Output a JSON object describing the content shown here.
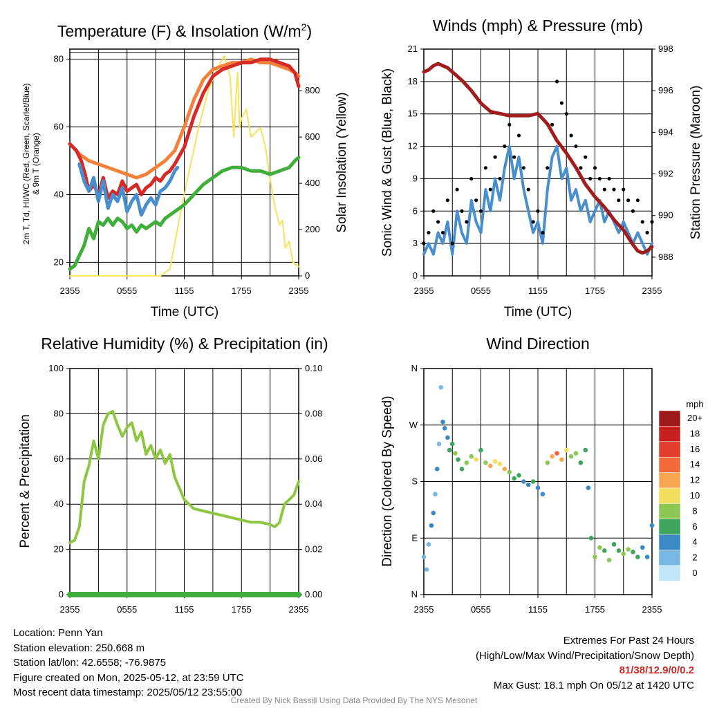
{
  "chart_data": [
    {
      "type": "line",
      "title": "Temperature (F) & Insolation (W/m²)",
      "title_main": "Temperature (F) & Insolation (W/m",
      "title_sup": "2",
      "title_end": ")",
      "xlabel": "Time (UTC)",
      "ylabel_left": [
        "2m T, Td, HI/WC (Red, Green, Scarlet/Blue)",
        "& 9m T (Orange)"
      ],
      "ylabel_right": "Solar Insolation (Yellow)",
      "x_tick_labels": [
        "2355",
        "0555",
        "1155",
        "1755",
        "2355"
      ],
      "xlim": [
        0,
        24
      ],
      "ylim_left": [
        16,
        83
      ],
      "ylim_right": [
        0,
        980
      ],
      "y_ticks_left": [
        20,
        40,
        60,
        80
      ],
      "y_ticks_right": [
        0,
        200,
        400,
        600,
        800
      ],
      "grid": true,
      "colors": {
        "temp": "#d62a27",
        "dewpoint": "#3fae3a",
        "windchill": "#4a8fcd",
        "temp9m": "#f2813b",
        "insolation": "#f7e25a"
      },
      "series": [
        {
          "key": "temp9m",
          "x": [
            0,
            1,
            2,
            3,
            4,
            5,
            6,
            7,
            8,
            9,
            10,
            11,
            12,
            13,
            14,
            15,
            16,
            17,
            18,
            19,
            20,
            21,
            22,
            23,
            23.6,
            24
          ],
          "y": [
            55,
            52,
            50,
            49,
            48,
            47,
            46,
            45,
            46,
            48,
            50,
            53,
            60,
            68,
            74,
            77,
            78,
            79,
            79,
            80,
            79,
            79,
            78,
            77,
            76,
            75
          ]
        },
        {
          "key": "temp",
          "x": [
            0,
            0.7,
            1.2,
            1.6,
            2,
            2.5,
            3,
            3.5,
            4,
            4.5,
            5,
            5.5,
            6,
            6.5,
            7,
            7.5,
            8,
            8.5,
            9,
            9.5,
            10,
            10.5,
            11,
            12,
            13,
            14,
            15,
            16,
            17,
            18,
            19,
            20,
            21,
            22,
            23,
            23.6,
            24
          ],
          "y": [
            55,
            53,
            50,
            46,
            41,
            43,
            40,
            45,
            39,
            41,
            40,
            44,
            41,
            42,
            43,
            40,
            42,
            43,
            45,
            44,
            46,
            47,
            49,
            54,
            63,
            70,
            75,
            77,
            78,
            79,
            79,
            80,
            80,
            79,
            78,
            76,
            72
          ]
        },
        {
          "key": "windchill",
          "x": [
            1,
            1.5,
            2,
            2.5,
            3,
            3.5,
            4,
            4.5,
            5,
            5.5,
            6,
            6.5,
            7,
            7.5,
            8,
            8.5,
            9,
            9.5,
            10,
            10.5,
            11,
            11.3
          ],
          "y": [
            49,
            44,
            41,
            45,
            38,
            44,
            36,
            40,
            38,
            42,
            35,
            38,
            40,
            34,
            37,
            39,
            37,
            41,
            42,
            44,
            47,
            48
          ]
        },
        {
          "key": "dewpoint",
          "x": [
            0,
            0.5,
            1,
            1.5,
            2,
            2.5,
            3,
            3.5,
            4,
            4.5,
            5,
            5.5,
            6,
            6.5,
            7,
            7.5,
            8,
            8.5,
            9,
            9.5,
            10,
            10.5,
            11,
            12,
            13,
            14,
            15,
            16,
            17,
            18,
            19,
            20,
            21,
            22,
            23,
            23.6,
            24
          ],
          "y": [
            18,
            19,
            22,
            25,
            30,
            27,
            32,
            31,
            33,
            31,
            33,
            32,
            30,
            31,
            29,
            31,
            30,
            31,
            32,
            31,
            33,
            34,
            35,
            37,
            40,
            43,
            45,
            47,
            48,
            48,
            47,
            47,
            46,
            47,
            48,
            50,
            51
          ]
        },
        {
          "key": "insolation",
          "x": [
            0,
            9.5,
            10.5,
            11.5,
            12.5,
            13.5,
            14.5,
            15.5,
            16.2,
            16.8,
            17.2,
            17.4,
            17.6,
            17.8,
            18,
            18.5,
            19,
            19.5,
            20,
            20.5,
            21,
            21.5,
            22,
            22.3,
            22.6,
            23,
            23.4,
            24
          ],
          "y": [
            0,
            0,
            30,
            250,
            450,
            640,
            800,
            900,
            950,
            860,
            600,
            760,
            880,
            640,
            680,
            720,
            600,
            620,
            640,
            560,
            420,
            300,
            220,
            240,
            120,
            150,
            60,
            40
          ]
        }
      ]
    },
    {
      "type": "line",
      "title": "Winds (mph) & Pressure (mb)",
      "xlabel": "Time (UTC)",
      "ylabel_left": "Sonic Wind & Gust (Blue, Black)",
      "ylabel_right": "Station Pressure (Maroon)",
      "x_tick_labels": [
        "2355",
        "0555",
        "1155",
        "1755",
        "2355"
      ],
      "xlim": [
        0,
        24
      ],
      "ylim_left": [
        0,
        21
      ],
      "ylim_right": [
        987.1,
        998
      ],
      "y_ticks_left": [
        0,
        3,
        6,
        9,
        12,
        15,
        18,
        21
      ],
      "y_ticks_right": [
        988,
        990,
        992,
        994,
        996,
        998
      ],
      "grid": true,
      "colors": {
        "wind": "#4a8fcd",
        "gust": "#000000",
        "pressure": "#a11c1c"
      },
      "series": [
        {
          "key": "wind",
          "x": [
            0,
            0.5,
            1,
            1.5,
            2,
            2.5,
            3,
            3.5,
            4,
            4.5,
            5,
            5.5,
            6,
            6.5,
            7,
            7.5,
            8,
            8.5,
            9,
            9.5,
            10,
            10.5,
            11,
            11.5,
            12,
            12.5,
            13,
            13.5,
            14,
            14.5,
            15,
            15.5,
            16,
            16.5,
            17,
            17.5,
            18,
            18.5,
            19,
            19.5,
            20,
            20.5,
            21,
            21.5,
            22,
            22.5,
            23,
            23.5,
            24
          ],
          "y": [
            2,
            3,
            2,
            4,
            3,
            5,
            2,
            6,
            4,
            3,
            7,
            5,
            4,
            8,
            6,
            9,
            7,
            10,
            12,
            9,
            11,
            8,
            6,
            4,
            5,
            3,
            8,
            11,
            12,
            9,
            10,
            7,
            8,
            6,
            7,
            5,
            6,
            7,
            5,
            6,
            5,
            4,
            5,
            4,
            3,
            4,
            3,
            2,
            3
          ]
        },
        {
          "key": "gust",
          "x": [
            0,
            0.5,
            1,
            1.5,
            2,
            2.5,
            3,
            3.5,
            4,
            4.5,
            5,
            5.5,
            6,
            6.5,
            7,
            7.5,
            8,
            8.5,
            9,
            9.5,
            10,
            10.5,
            11,
            11.5,
            12,
            12.5,
            13,
            13.5,
            14,
            14.5,
            15,
            15.5,
            16,
            16.5,
            17,
            17.5,
            18,
            18.5,
            19,
            19.5,
            20,
            20.5,
            21,
            21.5,
            22,
            22.5,
            23,
            23.5,
            24
          ],
          "y": [
            3,
            4,
            6,
            5,
            4,
            7,
            3,
            8,
            6,
            5,
            9,
            7,
            6,
            10,
            8,
            11,
            9,
            12,
            14,
            11,
            13,
            10,
            8,
            5,
            6,
            4,
            10,
            14,
            18,
            16,
            15,
            13,
            12,
            10,
            11,
            9,
            10,
            9,
            8,
            9,
            8,
            7,
            8,
            7,
            6,
            7,
            5,
            4,
            5
          ]
        },
        {
          "key": "pressure",
          "x": [
            0,
            0.5,
            1,
            1.5,
            2,
            2.5,
            3,
            4,
            5,
            6,
            7,
            8,
            9,
            10,
            11,
            12,
            13,
            14,
            15,
            16,
            17,
            18,
            19,
            20,
            21,
            22,
            22.5,
            23,
            23.5,
            24
          ],
          "y": [
            996.9,
            997.0,
            997.2,
            997.3,
            997.2,
            997.1,
            996.9,
            996.5,
            996.0,
            995.4,
            995.0,
            994.9,
            994.8,
            994.8,
            994.8,
            994.9,
            994.4,
            993.6,
            993.0,
            992.3,
            991.5,
            990.9,
            990.4,
            989.8,
            989.3,
            988.6,
            988.3,
            988.2,
            988.3,
            988.5
          ]
        }
      ]
    },
    {
      "type": "line",
      "title": "Relative Humidity (%) & Precipitation (in)",
      "xlabel": "",
      "ylabel_left": "Percent & Precipitation",
      "x_tick_labels": [
        "2355",
        "0555",
        "1155",
        "1755",
        "2355"
      ],
      "xlim": [
        0,
        24
      ],
      "ylim_left": [
        0,
        100
      ],
      "ylim_right": [
        0,
        0.1
      ],
      "y_ticks_left": [
        0,
        20,
        40,
        60,
        80,
        100
      ],
      "y_ticks_right": [
        "0.00",
        "0.02",
        "0.04",
        "0.06",
        "0.08",
        "0.10"
      ],
      "grid": true,
      "colors": {
        "rh": "#8ec641",
        "precip": "#3fae3a"
      },
      "series": [
        {
          "key": "rh",
          "x": [
            0,
            0.5,
            1,
            1.5,
            2,
            2.5,
            3,
            3.5,
            4,
            4.5,
            5,
            5.5,
            6,
            6.5,
            7,
            7.5,
            8,
            8.5,
            9,
            9.5,
            10,
            10.5,
            11,
            11.5,
            12,
            13,
            14,
            15,
            16,
            17,
            18,
            19,
            20,
            21,
            21.5,
            22,
            22.5,
            23,
            23.5,
            24
          ],
          "y": [
            23,
            24,
            30,
            50,
            57,
            68,
            60,
            75,
            80,
            81,
            75,
            70,
            74,
            76,
            68,
            72,
            62,
            66,
            60,
            64,
            58,
            62,
            52,
            47,
            42,
            38,
            37,
            36,
            35,
            34,
            33,
            32,
            32,
            31,
            30,
            32,
            40,
            42,
            44,
            50
          ]
        },
        {
          "key": "precip",
          "x": [
            0,
            24
          ],
          "y": [
            0.0,
            0.0
          ]
        }
      ]
    },
    {
      "type": "scatter",
      "title": "Wind Direction",
      "ylabel_left": "Direction (Colored By Speed)",
      "x_tick_labels": [
        "2355",
        "0555",
        "1155",
        "1755",
        "2355"
      ],
      "y_tick_labels": [
        "N",
        "E",
        "S",
        "W",
        "N"
      ],
      "xlim": [
        0,
        24
      ],
      "ylim": [
        0,
        360
      ],
      "grid": true,
      "legend": {
        "title": "mph",
        "labels": [
          "20+",
          "18",
          "16",
          "14",
          "12",
          "10",
          "8",
          "6",
          "4",
          "2",
          "0"
        ],
        "colors": [
          "#9e1a1a",
          "#c8201f",
          "#e23c2c",
          "#f2683a",
          "#f8a64f",
          "#f3de5e",
          "#8dc856",
          "#3ea55c",
          "#3b88c4",
          "#78b8e2",
          "#bfe6f7"
        ],
        "placement": "right"
      },
      "points": [
        [
          0.0,
          60,
          1
        ],
        [
          0.3,
          40,
          2
        ],
        [
          0.5,
          80,
          2
        ],
        [
          0.8,
          110,
          3
        ],
        [
          1.0,
          130,
          3
        ],
        [
          1.2,
          160,
          2
        ],
        [
          1.4,
          200,
          3
        ],
        [
          1.6,
          240,
          1
        ],
        [
          1.8,
          330,
          2
        ],
        [
          2.0,
          275,
          3
        ],
        [
          2.2,
          265,
          4
        ],
        [
          2.5,
          250,
          4
        ],
        [
          2.7,
          230,
          5
        ],
        [
          3.0,
          240,
          6
        ],
        [
          3.3,
          225,
          7
        ],
        [
          3.6,
          215,
          6
        ],
        [
          4.0,
          200,
          5
        ],
        [
          4.5,
          210,
          8
        ],
        [
          5.0,
          220,
          7
        ],
        [
          5.5,
          215,
          9
        ],
        [
          6.0,
          230,
          6
        ],
        [
          6.5,
          210,
          8
        ],
        [
          7.0,
          205,
          11
        ],
        [
          7.5,
          212,
          9
        ],
        [
          8.0,
          208,
          10
        ],
        [
          8.5,
          200,
          12
        ],
        [
          9.0,
          195,
          8
        ],
        [
          9.5,
          185,
          6
        ],
        [
          10.0,
          190,
          5
        ],
        [
          10.5,
          180,
          4
        ],
        [
          11.0,
          175,
          4
        ],
        [
          11.5,
          180,
          5
        ],
        [
          12.0,
          170,
          3
        ],
        [
          12.5,
          160,
          3
        ],
        [
          13.0,
          210,
          8
        ],
        [
          13.5,
          220,
          12
        ],
        [
          14.0,
          225,
          13
        ],
        [
          14.5,
          215,
          11
        ],
        [
          15.0,
          230,
          10
        ],
        [
          15.5,
          220,
          8
        ],
        [
          16.0,
          225,
          7
        ],
        [
          16.5,
          210,
          6
        ],
        [
          17.0,
          230,
          5
        ],
        [
          17.3,
          170,
          3
        ],
        [
          17.6,
          90,
          6
        ],
        [
          18.0,
          60,
          7
        ],
        [
          18.5,
          75,
          8
        ],
        [
          19.0,
          70,
          6
        ],
        [
          19.5,
          55,
          7
        ],
        [
          20.0,
          80,
          5
        ],
        [
          20.5,
          70,
          6
        ],
        [
          21.0,
          65,
          8
        ],
        [
          21.5,
          72,
          7
        ],
        [
          22.0,
          68,
          6
        ],
        [
          22.5,
          60,
          5
        ],
        [
          23.0,
          75,
          4
        ],
        [
          23.5,
          60,
          3
        ],
        [
          24.0,
          110,
          3
        ]
      ]
    }
  ],
  "footer": {
    "location": "Location: Penn Yan",
    "elevation": "Station elevation: 250.668 m",
    "latlon": "Station lat/lon: 42.6558; -76.9875",
    "created": "Figure created on Mon, 2025-05-12, at 23:59 UTC",
    "recent": "Most recent data timestamp: 2025/05/12 23:55:00",
    "extremes_title": "Extremes For Past 24 Hours",
    "extremes_legend": "(High/Low/Max Wind/Precipitation/Snow Depth)",
    "extremes_value": "81/38/12.9/0/0.2",
    "max_gust": "Max Gust: 18.1 mph On 05/12 at 1420 UTC",
    "credit": "Created By Nick Bassill Using Data Provided By The NYS Mesonet"
  }
}
